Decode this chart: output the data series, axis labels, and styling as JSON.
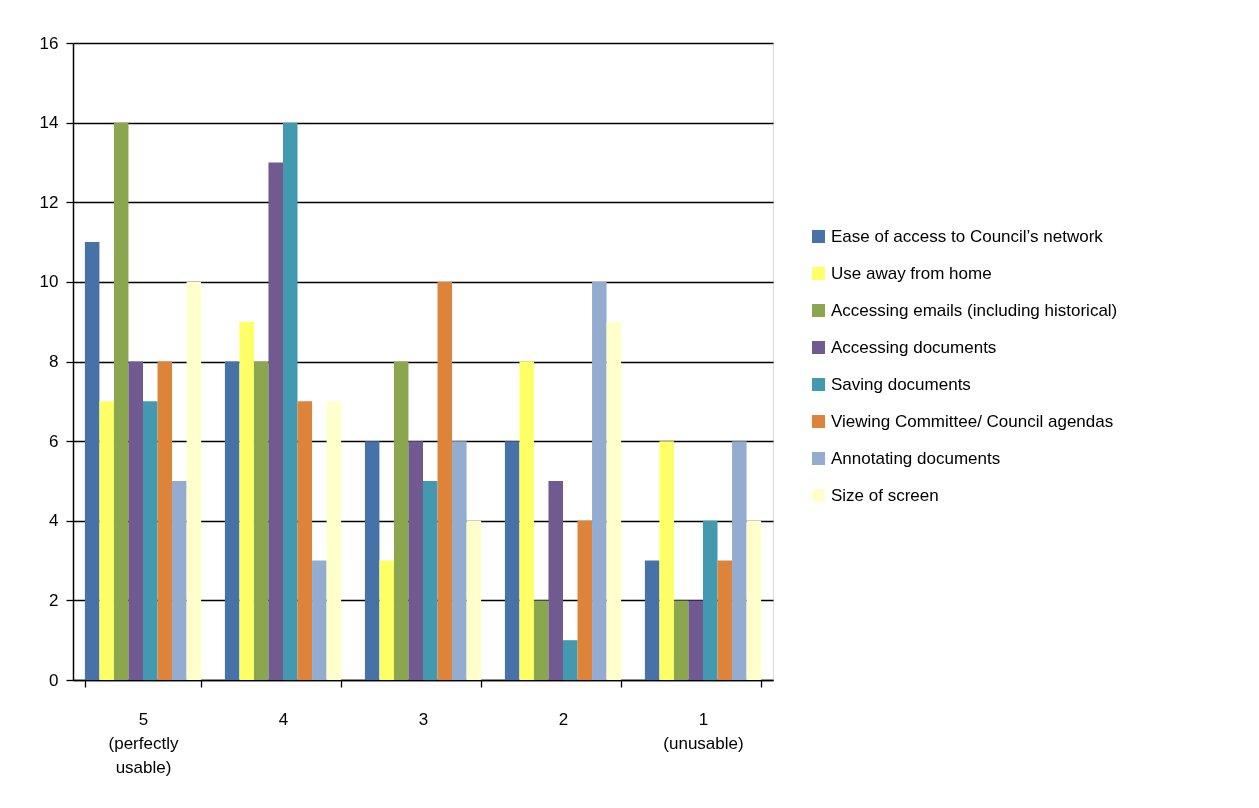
{
  "chart_data": {
    "type": "bar",
    "categories": [
      "5 (perfectly usable)",
      "4",
      "3",
      "2",
      "1 (unusable)"
    ],
    "series": [
      {
        "name": "Ease of access to Council’s network",
        "color": "#4672a8",
        "values": [
          11,
          8,
          6,
          6,
          3
        ]
      },
      {
        "name": "Use away from home",
        "color": "#ffff66",
        "values": [
          7,
          9,
          3,
          8,
          6
        ]
      },
      {
        "name": "Accessing emails (including historical)",
        "color": "#8aa64e",
        "values": [
          14,
          8,
          8,
          2,
          2
        ]
      },
      {
        "name": "Accessing documents",
        "color": "#705a8f",
        "values": [
          8,
          13,
          6,
          5,
          2
        ]
      },
      {
        "name": "Saving documents",
        "color": "#439ab0",
        "values": [
          7,
          14,
          5,
          1,
          4
        ]
      },
      {
        "name": "Viewing Committee/ Council agendas",
        "color": "#dd843a",
        "values": [
          8,
          7,
          10,
          4,
          3
        ]
      },
      {
        "name": "Annotating documents",
        "color": "#93accf",
        "values": [
          5,
          3,
          6,
          10,
          6
        ]
      },
      {
        "name": "Size of screen",
        "color": "#ffffcc",
        "values": [
          10,
          7,
          4,
          9,
          4
        ]
      }
    ],
    "ylim": [
      0,
      16
    ],
    "yticks": [
      0,
      2,
      4,
      6,
      8,
      10,
      12,
      14,
      16
    ],
    "grid": "y",
    "legend": "right"
  }
}
